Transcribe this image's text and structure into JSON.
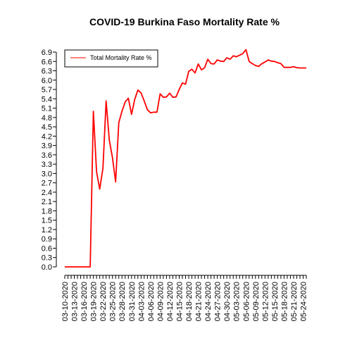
{
  "chart_data": {
    "type": "line",
    "title": "COVID-19 Burkina Faso Mortality Rate %",
    "xlabel": "",
    "ylabel": "",
    "legend": {
      "position": "top-left",
      "entries": [
        "Total Mortality Rate %"
      ]
    },
    "grid": false,
    "ylim": [
      0,
      6.9
    ],
    "y_ticks": [
      "0.0",
      "0.3",
      "0.6",
      "0.9",
      "1.2",
      "1.5",
      "1.8",
      "2.1",
      "2.4",
      "2.7",
      "3.0",
      "3.3",
      "3.6",
      "3.9",
      "4.2",
      "4.5",
      "4.8",
      "5.1",
      "5.4",
      "5.7",
      "6.0",
      "6.3",
      "6.6",
      "6.9"
    ],
    "x_tick_labels": [
      "03-10-2020",
      "03-13-2020",
      "03-16-2020",
      "03-19-2020",
      "03-22-2020",
      "03-25-2020",
      "03-28-2020",
      "03-31-2020",
      "04-03-2020",
      "04-06-2020",
      "04-09-2020",
      "04-12-2020",
      "04-15-2020",
      "04-18-2020",
      "04-21-2020",
      "04-24-2020",
      "04-27-2020",
      "04-30-2020",
      "05-03-2020",
      "05-06-2020",
      "05-09-2020",
      "05-12-2020",
      "05-15-2020",
      "05-18-2020",
      "05-21-2020",
      "05-24-2020"
    ],
    "x": [
      "03-10-2020",
      "03-11-2020",
      "03-12-2020",
      "03-13-2020",
      "03-14-2020",
      "03-15-2020",
      "03-16-2020",
      "03-17-2020",
      "03-18-2020",
      "03-19-2020",
      "03-20-2020",
      "03-21-2020",
      "03-22-2020",
      "03-23-2020",
      "03-24-2020",
      "03-25-2020",
      "03-26-2020",
      "03-27-2020",
      "03-28-2020",
      "03-29-2020",
      "03-30-2020",
      "03-31-2020",
      "04-01-2020",
      "04-02-2020",
      "04-03-2020",
      "04-04-2020",
      "04-05-2020",
      "04-06-2020",
      "04-07-2020",
      "04-08-2020",
      "04-09-2020",
      "04-10-2020",
      "04-11-2020",
      "04-12-2020",
      "04-13-2020",
      "04-14-2020",
      "04-15-2020",
      "04-16-2020",
      "04-17-2020",
      "04-18-2020",
      "04-19-2020",
      "04-20-2020",
      "04-21-2020",
      "04-22-2020",
      "04-23-2020",
      "04-24-2020",
      "04-25-2020",
      "04-26-2020",
      "04-27-2020",
      "04-28-2020",
      "04-29-2020",
      "04-30-2020",
      "05-01-2020",
      "05-02-2020",
      "05-03-2020",
      "05-04-2020",
      "05-05-2020",
      "05-06-2020",
      "05-07-2020",
      "05-08-2020",
      "05-09-2020",
      "05-10-2020",
      "05-11-2020",
      "05-12-2020",
      "05-13-2020",
      "05-14-2020",
      "05-15-2020",
      "05-16-2020",
      "05-17-2020",
      "05-18-2020",
      "05-19-2020",
      "05-20-2020",
      "05-21-2020",
      "05-22-2020",
      "05-23-2020",
      "05-24-2020",
      "05-25-2020"
    ],
    "series": [
      {
        "name": "Total Mortality Rate %",
        "color": "#ff0000",
        "values": [
          0.0,
          0.0,
          0.0,
          0.0,
          0.0,
          0.0,
          0.0,
          0.0,
          0.0,
          5.0,
          3.06,
          2.5,
          3.17,
          5.33,
          4.08,
          3.51,
          2.73,
          4.63,
          5.0,
          5.3,
          5.42,
          4.9,
          5.38,
          5.68,
          5.59,
          5.33,
          5.05,
          4.95,
          4.97,
          4.97,
          5.56,
          5.45,
          5.46,
          5.58,
          5.45,
          5.46,
          5.7,
          5.91,
          5.87,
          6.28,
          6.35,
          6.23,
          6.52,
          6.33,
          6.4,
          6.67,
          6.53,
          6.52,
          6.65,
          6.61,
          6.6,
          6.72,
          6.67,
          6.78,
          6.75,
          6.8,
          6.85,
          6.98,
          6.6,
          6.53,
          6.47,
          6.44,
          6.53,
          6.58,
          6.65,
          6.61,
          6.6,
          6.56,
          6.53,
          6.41,
          6.41,
          6.41,
          6.43,
          6.4,
          6.39,
          6.39,
          6.39
        ]
      }
    ]
  }
}
